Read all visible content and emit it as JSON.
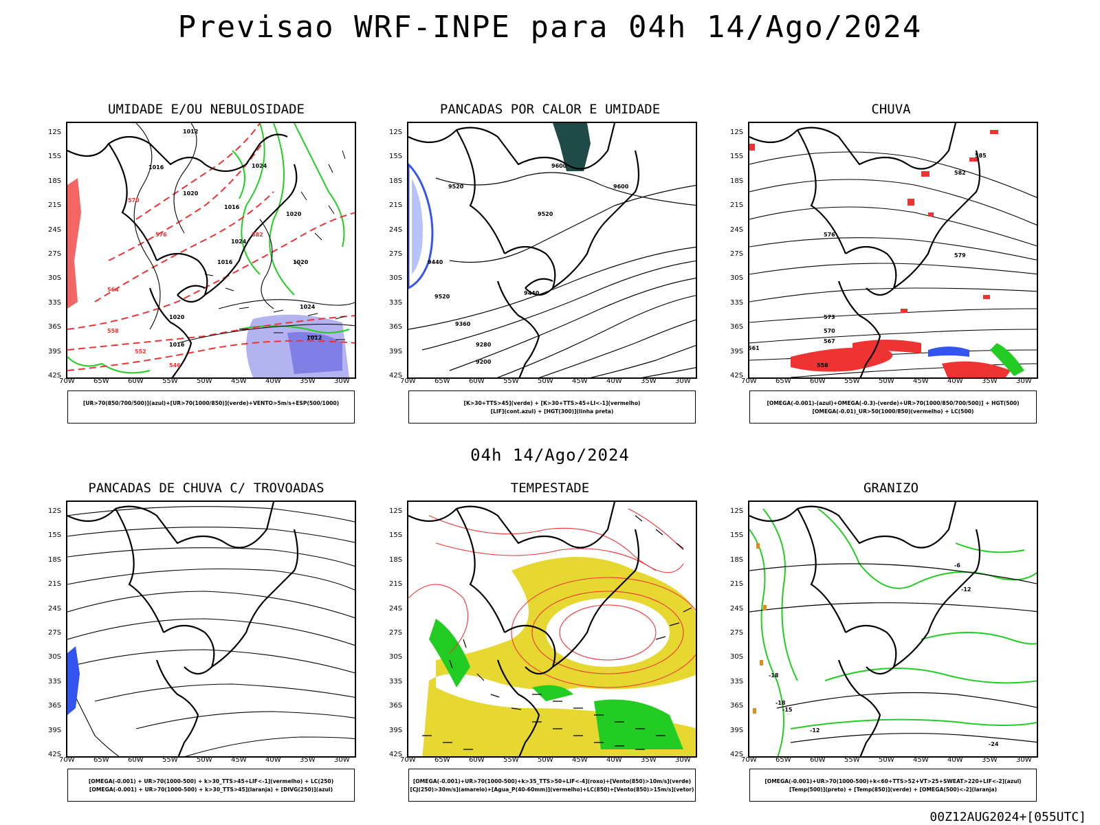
{
  "title": "Previsao WRF-INPE  para 04h 14/Ago/2024",
  "subtitle": "04h 14/Ago/2024",
  "footer": "00Z12AUG2024+[055UTC]",
  "lat_labels": [
    "12S",
    "15S",
    "18S",
    "21S",
    "24S",
    "27S",
    "30S",
    "33S",
    "36S",
    "39S",
    "42S"
  ],
  "lon_labels": [
    "70W",
    "65W",
    "60W",
    "55W",
    "50W",
    "45W",
    "40W",
    "35W",
    "30W"
  ],
  "panels": [
    {
      "title": "UMIDADE E/OU NEBULOSIDADE",
      "legend": [
        "[UR>70(850/700/500)](azul)+[UR>70(1000/850)](verde)+VENTO>5m/s+ESP(500/1000)"
      ]
    },
    {
      "title": "PANCADAS POR CALOR E UMIDADE",
      "legend": [
        "[K>30+TTS>45](verde) + [K>30+TTS>45+LI<-1](vermelho)",
        "[LIF](cont.azul) + [HGT(300)](linha preta)"
      ]
    },
    {
      "title": "CHUVA",
      "legend": [
        "[OMEGA(-0.001)-(azul)+OMEGA(-0.3)-(verde)+UR>70(1000/850/700/500)] + HGT(500)",
        "[OMEGA(-0.01)_UR>50(1000/850)(vermelho) + LC(500)"
      ]
    },
    {
      "title": "PANCADAS DE CHUVA C/ TROVOADAS",
      "legend": [
        "[OMEGA(-0.001) + UR>70(1000-500) + k>30_TTS>45+LIF<-1](vermelho) + LC(250)",
        "[OMEGA(-0.001) + UR>70(1000-500) + k>30_TTS>45](laranja) + [DIVG(250)](azul)"
      ]
    },
    {
      "title": "TEMPESTADE",
      "legend": [
        "[OMEGA(-0.001)+UR>70(1000-500)+k>35_TTS>50+LIF<-4](roxo)+[Vento(850)>10m/s](verde)",
        "[CJ(250)>30m/s](amarelo)+[Agua_P(40-60mm)](vermelho)+LC(850)+[Vento(850)>15m/s](vetor)"
      ]
    },
    {
      "title": "GRANIZO",
      "legend": [
        "[OMEGA(-0.001)+UR>70(1000-500)+k<60+TTS>52+VT>25+SWEAT>220+LIF<-2](azul)",
        "[Temp(500)](preto) + [Temp(850)](verde) + [OMEGA(500)<-2](laranja)"
      ]
    }
  ],
  "contour_labels": {
    "p1": [
      "1012",
      "1016",
      "1020",
      "1024",
      "1016",
      "1020",
      "1024",
      "1020",
      "1016",
      "1012",
      "1024",
      "1020",
      "1016",
      "570",
      "576",
      "582",
      "564",
      "558",
      "552",
      "546"
    ],
    "p2": [
      "9600",
      "9520",
      "9600",
      "9520",
      "9440",
      "9520",
      "9360",
      "9280",
      "9200",
      "9440"
    ],
    "p3": [
      "585",
      "582",
      "579",
      "576",
      "573",
      "570",
      "567",
      "561",
      "558"
    ],
    "p6": [
      "-6",
      "-12",
      "-18",
      "-24",
      "-15",
      "-18",
      "-12"
    ]
  },
  "colors": {
    "blue": "#3355ee",
    "green": "#22cc22",
    "red": "#ee3333",
    "yellow": "#e6d830",
    "darkteal": "#1f4a48",
    "lavender": "#b3b3f0",
    "orange": "#e08a20"
  }
}
